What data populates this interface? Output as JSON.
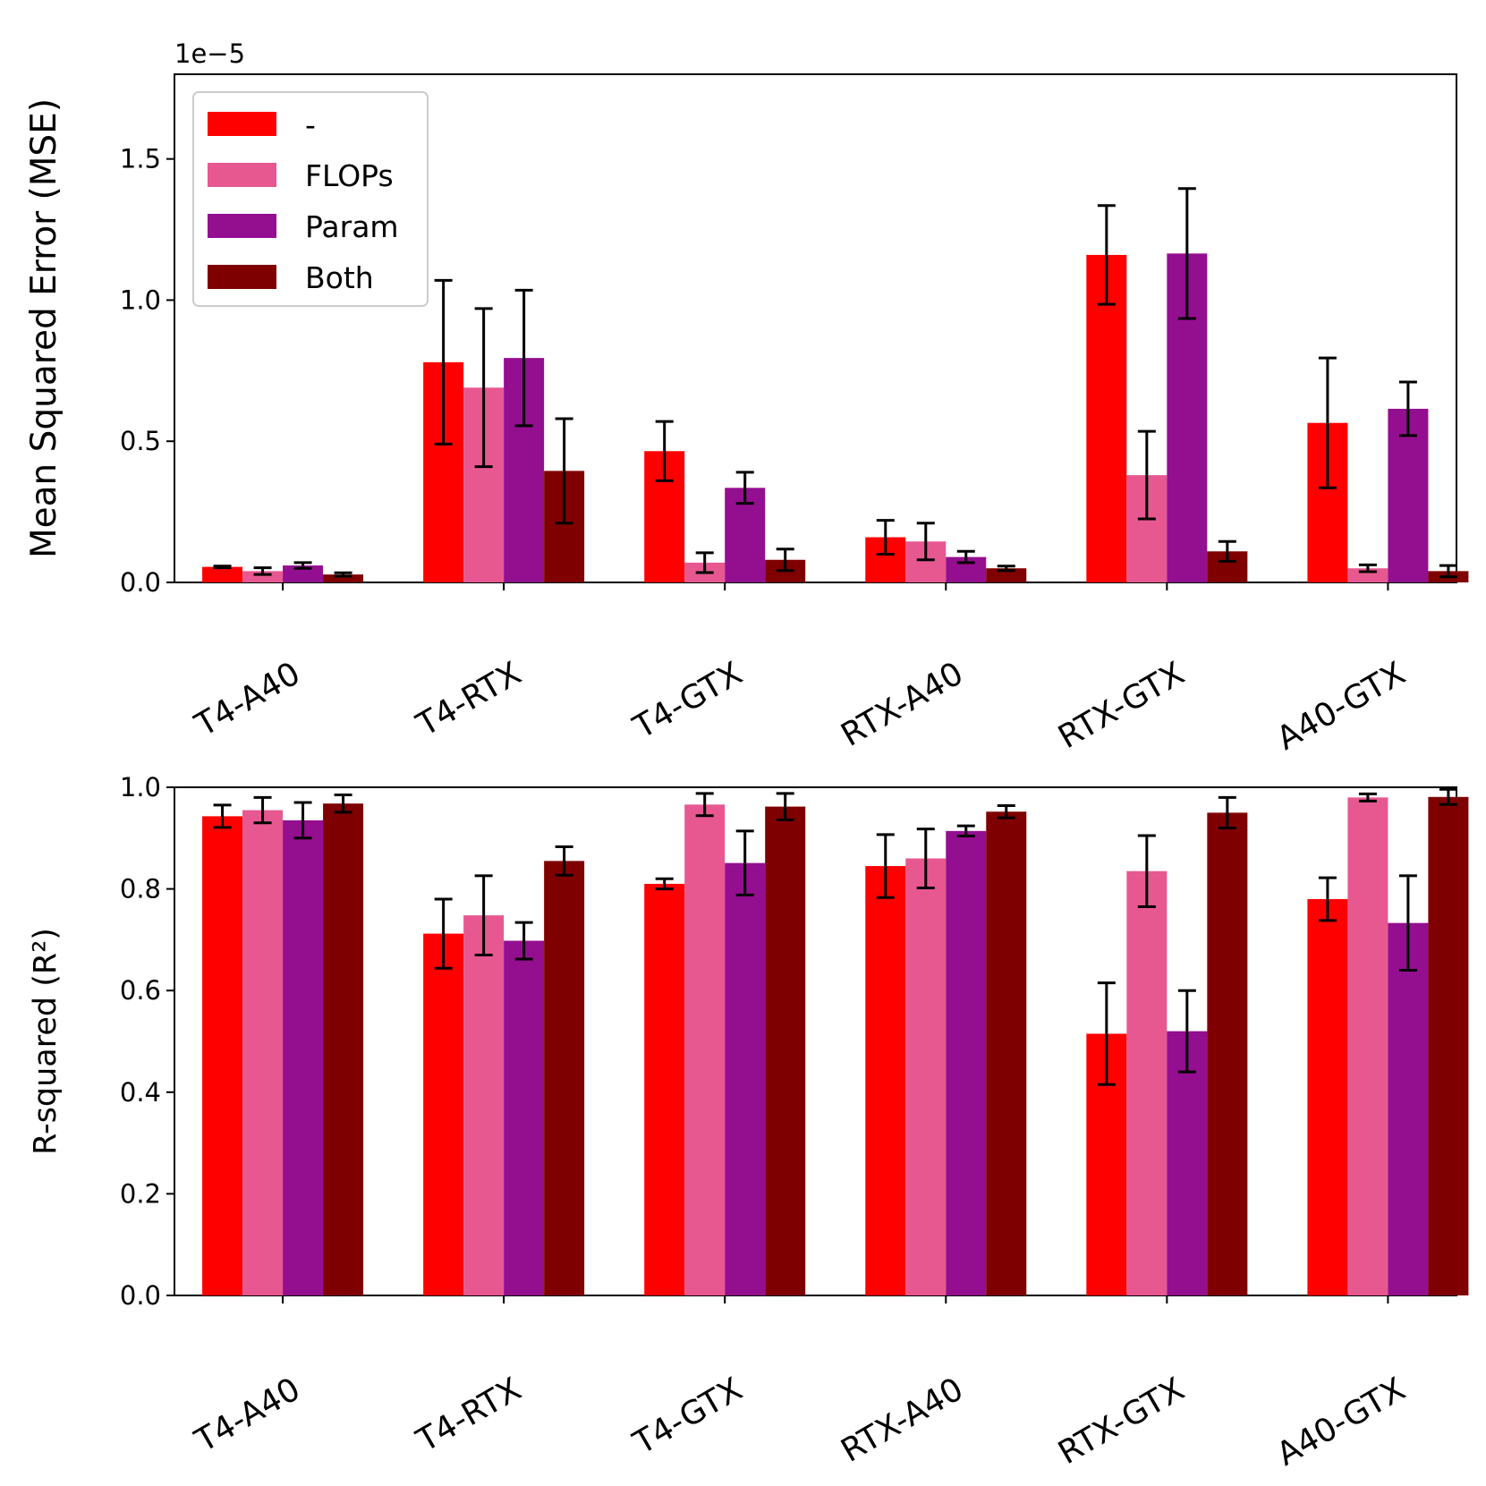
{
  "chart_data": [
    {
      "type": "bar",
      "categories": [
        "T4-A40",
        "T4-RTX",
        "T4-GTX",
        "RTX-A40",
        "RTX-GTX",
        "A40-GTX"
      ],
      "ylabel": "Mean Squared Error (MSE)",
      "scale_note": "1e−5",
      "ylim": [
        0,
        1.8
      ],
      "yticks": [
        "0.0",
        "0.5",
        "1.0",
        "1.5"
      ],
      "legend_position": "upper-left",
      "series": [
        {
          "name": "-",
          "color": "#ff0000",
          "values": [
            0.055,
            0.78,
            0.465,
            0.16,
            1.16,
            0.565
          ],
          "errors": [
            0.003,
            0.29,
            0.105,
            0.06,
            0.175,
            0.23
          ]
        },
        {
          "name": "FLOPs",
          "color": "#e75891",
          "values": [
            0.04,
            0.69,
            0.07,
            0.145,
            0.38,
            0.05
          ],
          "errors": [
            0.012,
            0.28,
            0.035,
            0.065,
            0.155,
            0.012
          ]
        },
        {
          "name": "Param",
          "color": "#940e90",
          "values": [
            0.06,
            0.795,
            0.335,
            0.09,
            1.165,
            0.615
          ],
          "errors": [
            0.01,
            0.24,
            0.055,
            0.02,
            0.23,
            0.095
          ]
        },
        {
          "name": "Both",
          "color": "#7f0000",
          "values": [
            0.028,
            0.395,
            0.08,
            0.05,
            0.11,
            0.04
          ],
          "errors": [
            0.006,
            0.185,
            0.038,
            0.008,
            0.035,
            0.02
          ]
        }
      ]
    },
    {
      "type": "bar",
      "categories": [
        "T4-A40",
        "T4-RTX",
        "T4-GTX",
        "RTX-A40",
        "RTX-GTX",
        "A40-GTX"
      ],
      "ylabel": "R-squared (R²)",
      "ylim": [
        0,
        1.0
      ],
      "yticks": [
        "0.0",
        "0.2",
        "0.4",
        "0.6",
        "0.8",
        "1.0"
      ],
      "series": [
        {
          "name": "-",
          "color": "#ff0000",
          "values": [
            0.943,
            0.712,
            0.81,
            0.845,
            0.515,
            0.78
          ],
          "errors": [
            0.022,
            0.068,
            0.01,
            0.062,
            0.1,
            0.042
          ]
        },
        {
          "name": "FLOPs",
          "color": "#e75891",
          "values": [
            0.955,
            0.748,
            0.966,
            0.86,
            0.835,
            0.98
          ],
          "errors": [
            0.025,
            0.078,
            0.022,
            0.058,
            0.07,
            0.007
          ]
        },
        {
          "name": "Param",
          "color": "#940e90",
          "values": [
            0.935,
            0.698,
            0.851,
            0.914,
            0.52,
            0.733
          ],
          "errors": [
            0.035,
            0.036,
            0.063,
            0.01,
            0.08,
            0.093
          ]
        },
        {
          "name": "Both",
          "color": "#7f0000",
          "values": [
            0.968,
            0.855,
            0.962,
            0.952,
            0.95,
            0.981
          ],
          "errors": [
            0.017,
            0.028,
            0.026,
            0.012,
            0.03,
            0.015
          ]
        }
      ]
    }
  ]
}
